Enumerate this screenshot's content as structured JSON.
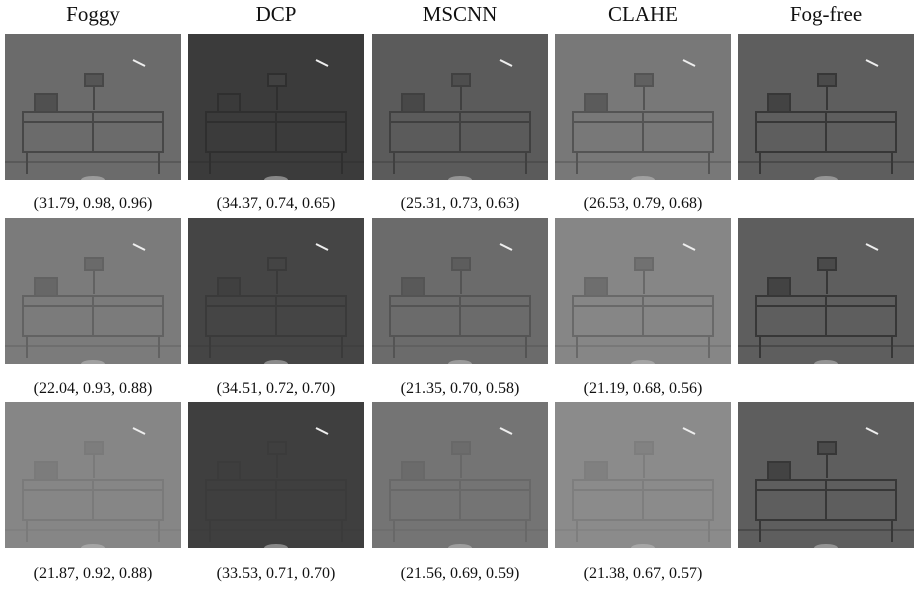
{
  "columns": [
    "Foggy",
    "DCP",
    "MSCNN",
    "CLAHE",
    "Fog-free"
  ],
  "rows": [
    {
      "captions": [
        "(31.79, 0.98, 0.96)",
        "(34.37, 0.74, 0.65)",
        "(25.31, 0.73, 0.63)",
        "(26.53, 0.79, 0.68)"
      ]
    },
    {
      "captions": [
        "(22.04, 0.93, 0.88)",
        "(34.51, 0.72, 0.70)",
        "(21.35, 0.70, 0.58)",
        "(21.19, 0.68, 0.56)"
      ]
    },
    {
      "captions": [
        "(21.87, 0.92, 0.88)",
        "(33.53, 0.71, 0.70)",
        "(21.56, 0.69, 0.59)",
        "(21.38, 0.67, 0.57)"
      ]
    }
  ]
}
